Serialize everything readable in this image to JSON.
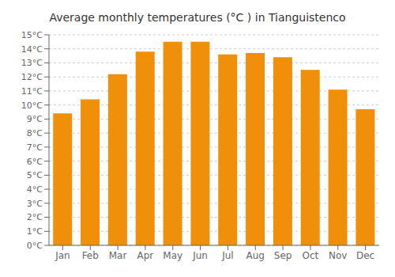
{
  "chart_data": {
    "type": "bar",
    "title": "Average monthly temperatures (°C ) in Tianguistenco",
    "categories": [
      "Jan",
      "Feb",
      "Mar",
      "Apr",
      "May",
      "Jun",
      "Jul",
      "Aug",
      "Sep",
      "Oct",
      "Nov",
      "Dec"
    ],
    "values": [
      9.4,
      10.4,
      12.2,
      13.8,
      14.5,
      14.5,
      13.6,
      13.7,
      13.4,
      12.5,
      11.1,
      9.7
    ],
    "color": "#F0900A",
    "ylim": [
      0,
      15
    ],
    "yticks": [
      {
        "value": 0,
        "label": "0°C"
      },
      {
        "value": 1,
        "label": "1°C"
      },
      {
        "value": 2,
        "label": "2°C"
      },
      {
        "value": 3,
        "label": "3°C"
      },
      {
        "value": 4,
        "label": "4°C"
      },
      {
        "value": 5,
        "label": "5°C"
      },
      {
        "value": 6,
        "label": "6°C"
      },
      {
        "value": 7,
        "label": "7°C"
      },
      {
        "value": 8,
        "label": "8°C"
      },
      {
        "value": 9,
        "label": "9°C"
      },
      {
        "value": 10,
        "label": "10°C"
      },
      {
        "value": 11,
        "label": "11°C"
      },
      {
        "value": 12,
        "label": "12°C"
      },
      {
        "value": 13,
        "label": "13°C"
      },
      {
        "value": 14,
        "label": "14°C"
      },
      {
        "value": 15,
        "label": "15°C"
      }
    ],
    "grid": true
  }
}
